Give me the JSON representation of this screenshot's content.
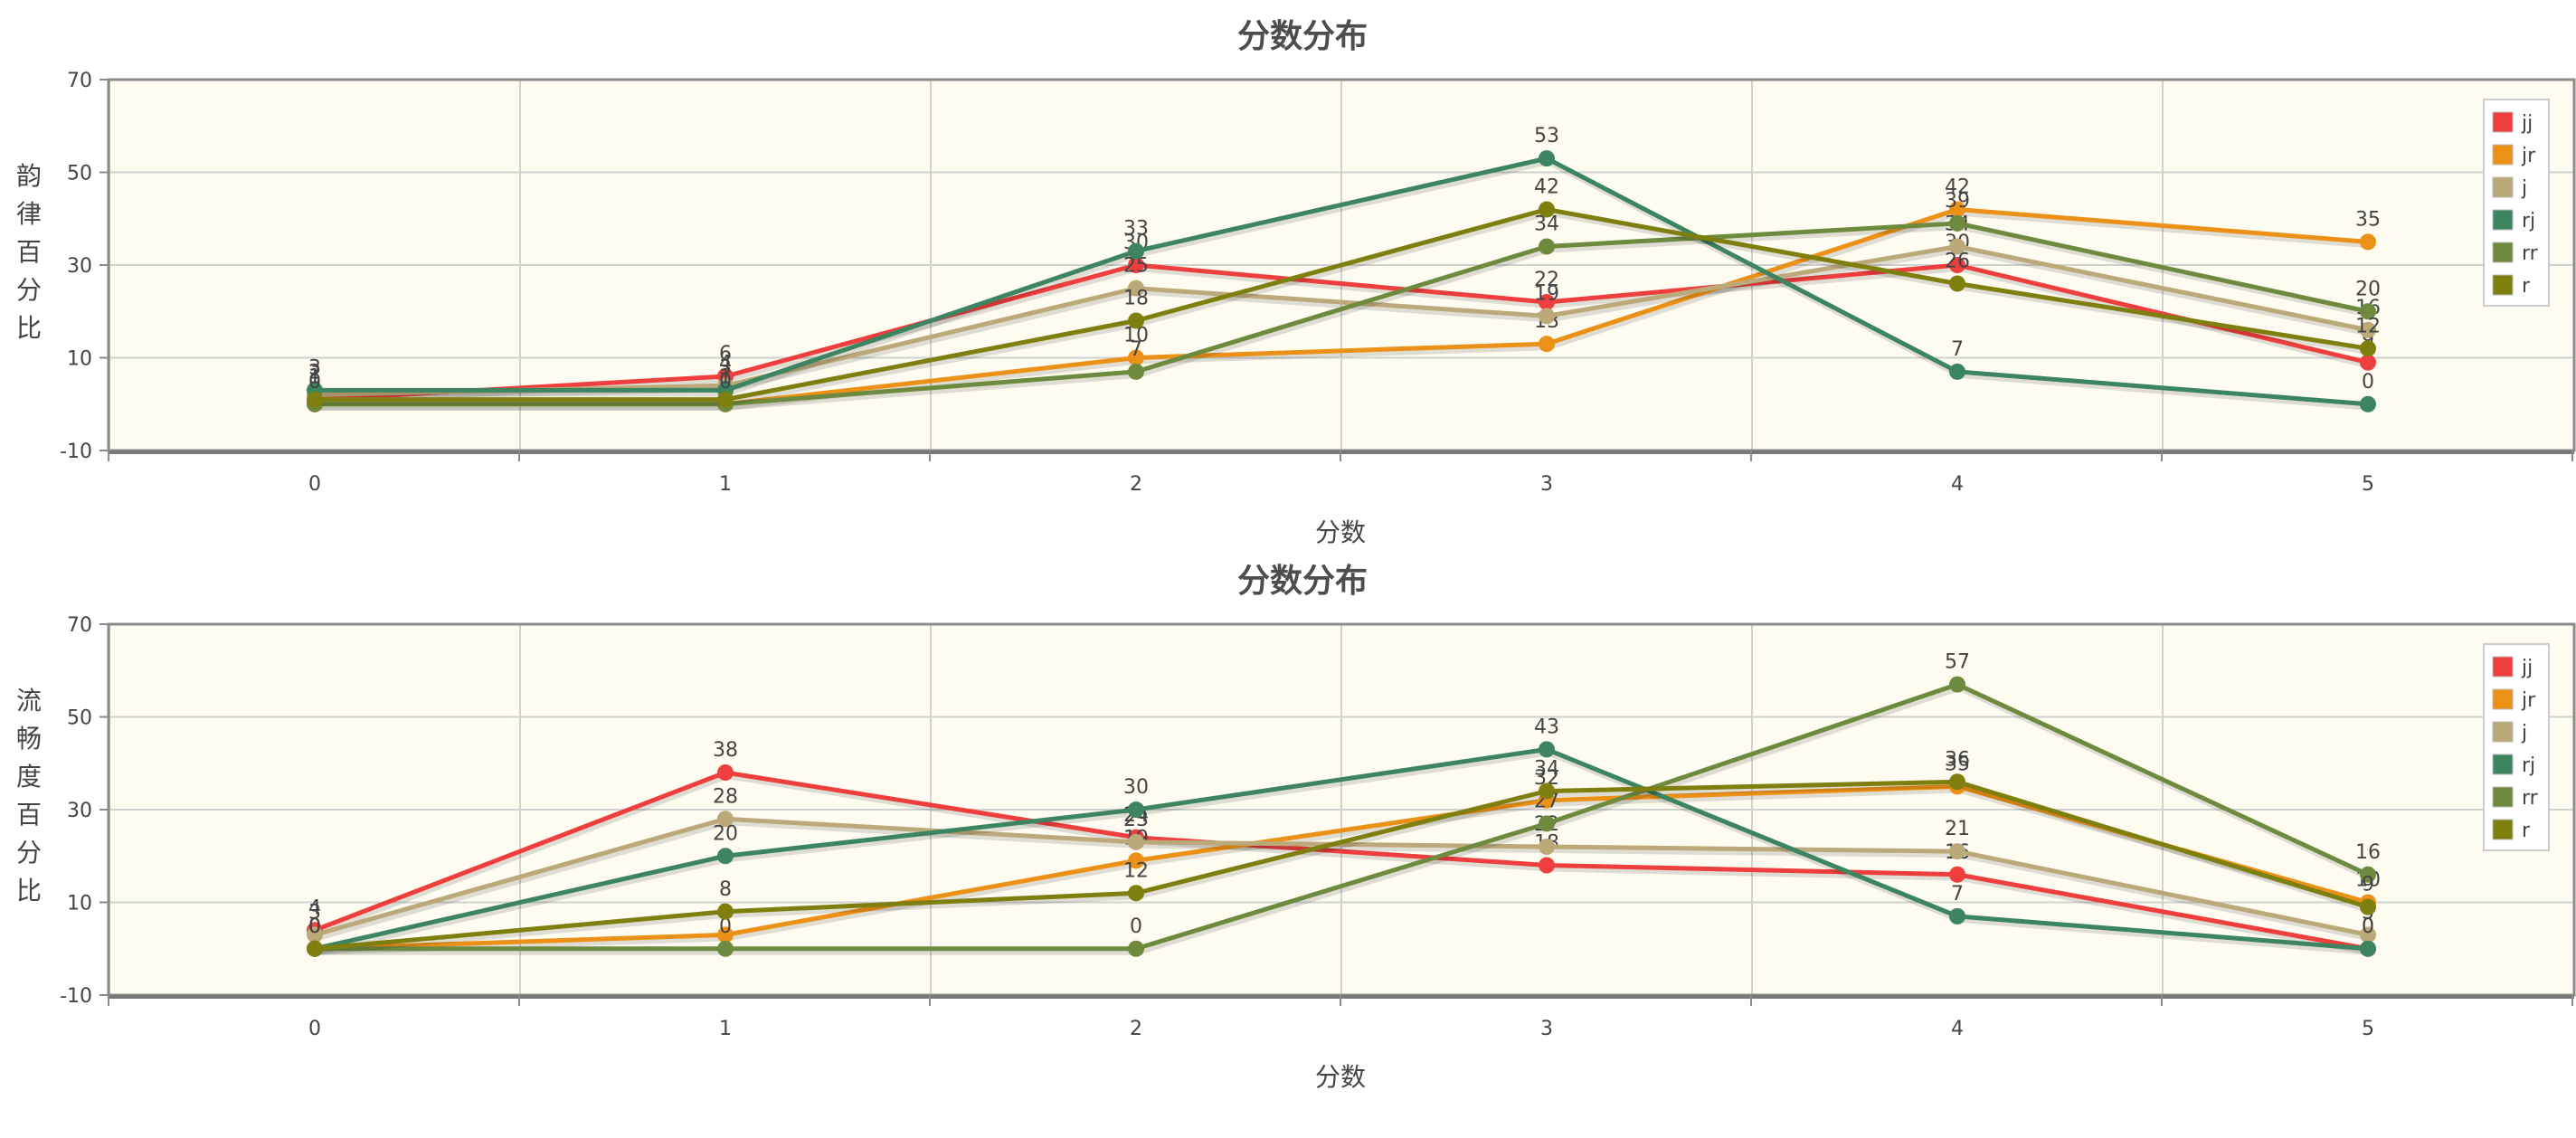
{
  "chart_data": [
    {
      "type": "line",
      "title": "分数分布",
      "xlabel": "分数",
      "ylabel": "韵律百分比",
      "x": [
        0,
        1,
        2,
        3,
        4,
        5
      ],
      "ylim": [
        -10,
        70
      ],
      "yticks": [
        -10,
        10,
        30,
        50,
        70
      ],
      "grid": true,
      "legend_position": "top-right",
      "series": [
        {
          "name": "jj",
          "color": "#ee3e3e",
          "values": [
            1,
            6,
            30,
            22,
            30,
            9
          ]
        },
        {
          "name": "jr",
          "color": "#ec9117",
          "values": [
            0,
            0,
            10,
            13,
            42,
            35
          ]
        },
        {
          "name": "j",
          "color": "#bca97a",
          "values": [
            2,
            4,
            25,
            19,
            34,
            16
          ]
        },
        {
          "name": "rj",
          "color": "#3d8461",
          "values": [
            3,
            3,
            33,
            53,
            7,
            0
          ]
        },
        {
          "name": "rr",
          "color": "#6e8a3e",
          "values": [
            0,
            0,
            7,
            34,
            39,
            20
          ]
        },
        {
          "name": "r",
          "color": "#7f7f10",
          "values": [
            1,
            1,
            18,
            42,
            26,
            12
          ]
        }
      ]
    },
    {
      "type": "line",
      "title": "分数分布",
      "xlabel": "分数",
      "ylabel": "流畅度百分比",
      "x": [
        0,
        1,
        2,
        3,
        4,
        5
      ],
      "ylim": [
        -10,
        70
      ],
      "yticks": [
        -10,
        10,
        30,
        50,
        70
      ],
      "grid": true,
      "legend_position": "top-right",
      "series": [
        {
          "name": "jj",
          "color": "#ee3e3e",
          "values": [
            4,
            38,
            24,
            18,
            16,
            0
          ]
        },
        {
          "name": "jr",
          "color": "#ec9117",
          "values": [
            0,
            3,
            19,
            32,
            35,
            10
          ]
        },
        {
          "name": "j",
          "color": "#bca97a",
          "values": [
            3,
            28,
            23,
            22,
            21,
            3
          ]
        },
        {
          "name": "rj",
          "color": "#3d8461",
          "values": [
            0,
            20,
            30,
            43,
            7,
            0
          ]
        },
        {
          "name": "rr",
          "color": "#6e8a3e",
          "values": [
            0,
            0,
            0,
            27,
            57,
            16
          ]
        },
        {
          "name": "r",
          "color": "#7f7f10",
          "values": [
            0,
            8,
            12,
            34,
            36,
            9
          ]
        }
      ]
    }
  ],
  "style": {
    "plot_background": "#fefcf1",
    "grid_color": "#cfd2cf",
    "axis_color": "#8a8a8a"
  }
}
